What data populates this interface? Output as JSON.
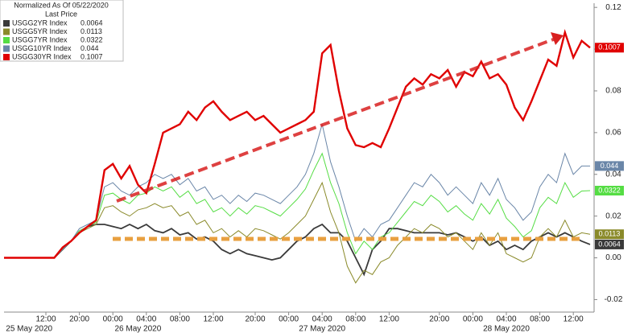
{
  "chart_data": {
    "type": "line",
    "legend_title": "Normalized As Of 05/22/2020",
    "legend_subtitle": "Last Price",
    "categories": [
      null,
      null,
      null,
      null,
      null,
      "12:00",
      null,
      null,
      null,
      "20:00",
      null,
      null,
      null,
      "00:00",
      null,
      null,
      null,
      "04:00",
      null,
      null,
      null,
      "08:00",
      null,
      null,
      null,
      "12:00",
      null,
      null,
      null,
      null,
      "20:00",
      null,
      null,
      null,
      "00:00",
      null,
      null,
      null,
      "04:00",
      null,
      null,
      null,
      "08:00",
      null,
      null,
      null,
      "12:00",
      null,
      null,
      null,
      null,
      null,
      "20:00",
      null,
      null,
      null,
      "00:00",
      null,
      null,
      null,
      "04:00",
      null,
      null,
      null,
      "08:00",
      null,
      null,
      null,
      "12:00",
      null,
      null
    ],
    "date_categories": [
      null,
      null,
      null,
      "25 May 2020",
      null,
      null,
      null,
      null,
      null,
      null,
      null,
      null,
      null,
      null,
      null,
      null,
      "26 May 2020",
      null,
      null,
      null,
      null,
      null,
      null,
      null,
      null,
      null,
      null,
      null,
      null,
      null,
      null,
      null,
      null,
      null,
      null,
      null,
      null,
      null,
      "27 May 2020",
      null,
      null,
      null,
      null,
      null,
      null,
      null,
      null,
      null,
      null,
      null,
      null,
      null,
      null,
      null,
      null,
      null,
      null,
      null,
      null,
      null,
      "28 May 2020",
      null,
      null,
      null,
      null,
      null,
      null,
      null,
      null,
      null,
      null
    ],
    "series": [
      {
        "name": "USGG2YR Index",
        "color": "#3a3a3a",
        "values": [
          0,
          0,
          0,
          0,
          0,
          0,
          0,
          0.004,
          0.008,
          0.012,
          0.015,
          0.016,
          0.016,
          0.015,
          0.014,
          0.016,
          0.014,
          0.016,
          0.013,
          0.012,
          0.014,
          0.011,
          0.012,
          0.009,
          0.01,
          0.008,
          0.004,
          0.002,
          0.004,
          0.002,
          0.001,
          0.0,
          -0.001,
          0.0,
          0.004,
          0.008,
          0.01,
          0.014,
          0.016,
          0.012,
          0.012,
          0.008,
          0.0,
          -0.008,
          0.004,
          0.008,
          0.014,
          0.014,
          0.013,
          0.012,
          0.012,
          0.012,
          0.012,
          0.011,
          0.012,
          0.01,
          0.008,
          0.01,
          0.006,
          0.008,
          0.004,
          0.006,
          0.004,
          0.008,
          0.01,
          0.012,
          0.01,
          0.012,
          0.01,
          0.008,
          0.0064
        ]
      },
      {
        "name": "USGG5YR Index",
        "color": "#8a8a2a",
        "values": [
          0,
          0,
          0,
          0,
          0,
          0,
          0,
          0.004,
          0.008,
          0.012,
          0.014,
          0.016,
          0.024,
          0.025,
          0.022,
          0.02,
          0.023,
          0.024,
          0.026,
          0.024,
          0.025,
          0.02,
          0.022,
          0.016,
          0.018,
          0.012,
          0.014,
          0.01,
          0.013,
          0.01,
          0.014,
          0.013,
          0.011,
          0.009,
          0.012,
          0.016,
          0.02,
          0.028,
          0.036,
          0.022,
          0.012,
          -0.004,
          -0.012,
          -0.006,
          -0.008,
          -0.002,
          0.0,
          0.006,
          0.01,
          0.014,
          0.012,
          0.016,
          0.014,
          0.01,
          0.012,
          0.008,
          0.004,
          0.012,
          0.006,
          0.012,
          0.002,
          0.0,
          -0.002,
          0.0,
          0.01,
          0.014,
          0.01,
          0.018,
          0.01,
          0.012,
          0.0113
        ]
      },
      {
        "name": "USGG7YR Index",
        "color": "#55dd44",
        "values": [
          0,
          0,
          0,
          0,
          0,
          0,
          0,
          0.004,
          0.008,
          0.013,
          0.015,
          0.017,
          0.03,
          0.031,
          0.028,
          0.026,
          0.03,
          0.031,
          0.034,
          0.032,
          0.034,
          0.029,
          0.032,
          0.026,
          0.028,
          0.022,
          0.024,
          0.02,
          0.024,
          0.021,
          0.025,
          0.024,
          0.022,
          0.02,
          0.024,
          0.028,
          0.033,
          0.042,
          0.05,
          0.036,
          0.026,
          0.012,
          0.002,
          0.008,
          0.004,
          0.01,
          0.012,
          0.017,
          0.022,
          0.027,
          0.025,
          0.03,
          0.027,
          0.022,
          0.025,
          0.021,
          0.018,
          0.026,
          0.021,
          0.028,
          0.019,
          0.015,
          0.01,
          0.013,
          0.024,
          0.029,
          0.026,
          0.036,
          0.029,
          0.032,
          0.0322
        ]
      },
      {
        "name": "USGG10YR Index",
        "color": "#6a86a8",
        "values": [
          0,
          0,
          0,
          0,
          0,
          0,
          0,
          0.004,
          0.008,
          0.014,
          0.016,
          0.018,
          0.034,
          0.036,
          0.032,
          0.03,
          0.034,
          0.036,
          0.04,
          0.038,
          0.04,
          0.035,
          0.038,
          0.032,
          0.034,
          0.028,
          0.03,
          0.026,
          0.03,
          0.027,
          0.031,
          0.03,
          0.028,
          0.026,
          0.03,
          0.034,
          0.04,
          0.05,
          0.064,
          0.046,
          0.034,
          0.02,
          0.008,
          0.014,
          0.01,
          0.016,
          0.018,
          0.024,
          0.03,
          0.036,
          0.034,
          0.04,
          0.036,
          0.03,
          0.034,
          0.03,
          0.026,
          0.036,
          0.03,
          0.038,
          0.028,
          0.024,
          0.018,
          0.022,
          0.034,
          0.04,
          0.036,
          0.05,
          0.04,
          0.044,
          0.044
        ]
      },
      {
        "name": "USGG30YR Index",
        "color": "#e00000",
        "values": [
          0,
          0,
          0,
          0,
          0,
          0,
          0,
          0.005,
          0.008,
          0.012,
          0.015,
          0.018,
          0.042,
          0.045,
          0.038,
          0.044,
          0.035,
          0.031,
          0.045,
          0.06,
          0.062,
          0.064,
          0.07,
          0.066,
          0.072,
          0.075,
          0.07,
          0.066,
          0.068,
          0.07,
          0.066,
          0.068,
          0.064,
          0.06,
          0.062,
          0.064,
          0.066,
          0.07,
          0.098,
          0.102,
          0.08,
          0.062,
          0.054,
          0.053,
          0.055,
          0.053,
          0.062,
          0.072,
          0.082,
          0.086,
          0.083,
          0.088,
          0.086,
          0.09,
          0.082,
          0.089,
          0.087,
          0.094,
          0.086,
          0.088,
          0.083,
          0.072,
          0.066,
          0.075,
          0.085,
          0.095,
          0.092,
          0.108,
          0.096,
          0.104,
          0.1007
        ]
      }
    ],
    "ylim": [
      -0.026,
      0.122
    ],
    "yticks": [
      {
        "value": -0.02,
        "label": "-0.02"
      },
      {
        "value": 0,
        "label": "0.00"
      },
      0.02,
      0.04,
      0.06,
      0.08,
      {
        "value": 0.1,
        "label": "0.10"
      },
      0.12
    ],
    "grid": false
  }
}
